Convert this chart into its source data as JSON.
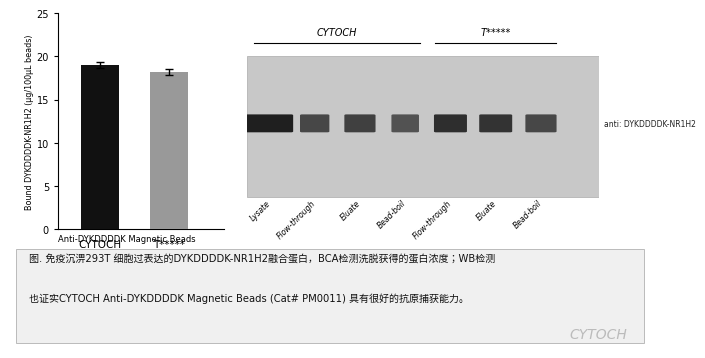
{
  "bg_color": "#ffffff",
  "bar_values": [
    19.0,
    18.2
  ],
  "bar_errors": [
    0.4,
    0.3
  ],
  "bar_colors": [
    "#111111",
    "#999999"
  ],
  "bar_labels": [
    "CYTOCH",
    "T*****"
  ],
  "ylabel": "Bound DYKDDDDK-NR1H2 (μg/100μL beads)",
  "ylim": [
    0,
    25
  ],
  "yticks": [
    0,
    5,
    10,
    15,
    20,
    25
  ],
  "caption_label": "Anti-DYKDDDDK Magnetic Beads",
  "bottom_text_line1": "图. 免疫沉淠293T 细胞过表达的DYKDDDDK-NR1H2融合蛋白，BCA检测洗脱获得的蛋白浓度；WB检测",
  "bottom_text_line2": "也证实CYTOCH Anti-DYKDDDDK Magnetic Beads (Cat# PM0011) 具有很好的抗原捕获能力。",
  "cytoch_watermark": "CYTOCH",
  "wb_group1_label": "CYTOCH",
  "wb_group2_label": "T*****",
  "wb_lanes": [
    "Lysate",
    "Flow-through",
    "Eluate",
    "Bead-boil",
    "Flow-through",
    "Eluate",
    "Bead-boil"
  ],
  "wb_antibody_label": "anti: DYKDDDDK-NR1H2",
  "wb_bg_color": "#c8c8c8",
  "wb_band_widths": [
    1.2,
    0.7,
    0.75,
    0.65,
    0.8,
    0.8,
    0.75
  ],
  "wb_band_darkness": [
    0.88,
    0.72,
    0.75,
    0.68,
    0.82,
    0.8,
    0.72
  ]
}
